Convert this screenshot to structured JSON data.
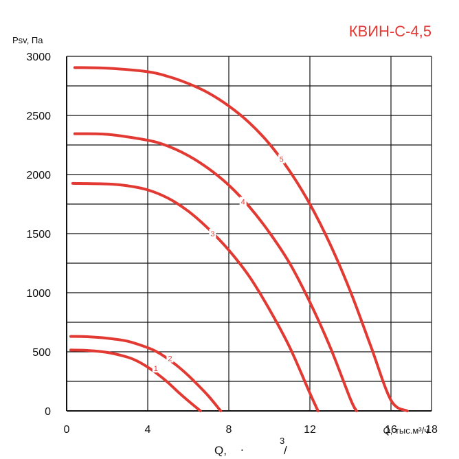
{
  "chart_data": {
    "type": "line",
    "title": "КВИН-С-4,5",
    "ylabel": "Psv, Па",
    "xlabel": "Q, тыс.м³/ч",
    "bottom_label": {
      "q": "Q,",
      "dot": ".",
      "sup": "3",
      "slash": "/"
    },
    "xlim": [
      0,
      18
    ],
    "ylim": [
      0,
      3000
    ],
    "x_ticks": [
      "0",
      "4",
      "8",
      "12",
      "16",
      "18"
    ],
    "y_ticks": [
      "0",
      "500",
      "1000",
      "1500",
      "2000",
      "2500",
      "3000"
    ],
    "grid": true,
    "colors": {
      "curve": "#e23a33",
      "grid": "#111111"
    },
    "series": [
      {
        "label": "1",
        "label_at": [
          4.4,
          360
        ],
        "x": [
          0.2,
          1.0,
          2.0,
          3.0,
          3.5,
          4.0,
          4.5,
          5.0,
          5.5,
          6.0,
          6.6
        ],
        "y": [
          515,
          512,
          495,
          455,
          420,
          370,
          310,
          240,
          160,
          85,
          0
        ]
      },
      {
        "label": "2",
        "label_at": [
          5.1,
          445
        ],
        "x": [
          0.2,
          1.0,
          2.0,
          3.0,
          4.0,
          4.5,
          5.0,
          5.5,
          6.0,
          6.5,
          7.0,
          7.6
        ],
        "y": [
          630,
          628,
          615,
          590,
          535,
          495,
          440,
          375,
          300,
          215,
          125,
          0
        ]
      },
      {
        "label": "3",
        "label_at": [
          7.2,
          1500
        ],
        "x": [
          0.3,
          2.0,
          3.0,
          4.0,
          5.0,
          6.0,
          7.0,
          8.0,
          9.0,
          10.0,
          11.0,
          12.0,
          12.4
        ],
        "y": [
          1925,
          1920,
          1905,
          1870,
          1800,
          1690,
          1540,
          1360,
          1140,
          860,
          540,
          150,
          0
        ]
      },
      {
        "label": "4",
        "label_at": [
          8.7,
          1770
        ],
        "x": [
          0.4,
          2.0,
          4.0,
          5.0,
          6.0,
          7.0,
          8.0,
          9.0,
          10.0,
          11.0,
          12.0,
          13.0,
          14.0,
          14.3
        ],
        "y": [
          2345,
          2340,
          2290,
          2240,
          2160,
          2050,
          1910,
          1730,
          1510,
          1250,
          920,
          540,
          100,
          0
        ]
      },
      {
        "label": "5",
        "label_at": [
          10.6,
          2130
        ],
        "x": [
          0.4,
          2.0,
          4.0,
          5.0,
          6.0,
          7.0,
          8.0,
          9.0,
          10.0,
          11.0,
          12.0,
          13.0,
          14.0,
          15.0,
          16.0,
          16.8
        ],
        "y": [
          2905,
          2900,
          2870,
          2830,
          2770,
          2690,
          2580,
          2440,
          2260,
          2030,
          1750,
          1410,
          1010,
          550,
          90,
          0
        ]
      }
    ]
  }
}
